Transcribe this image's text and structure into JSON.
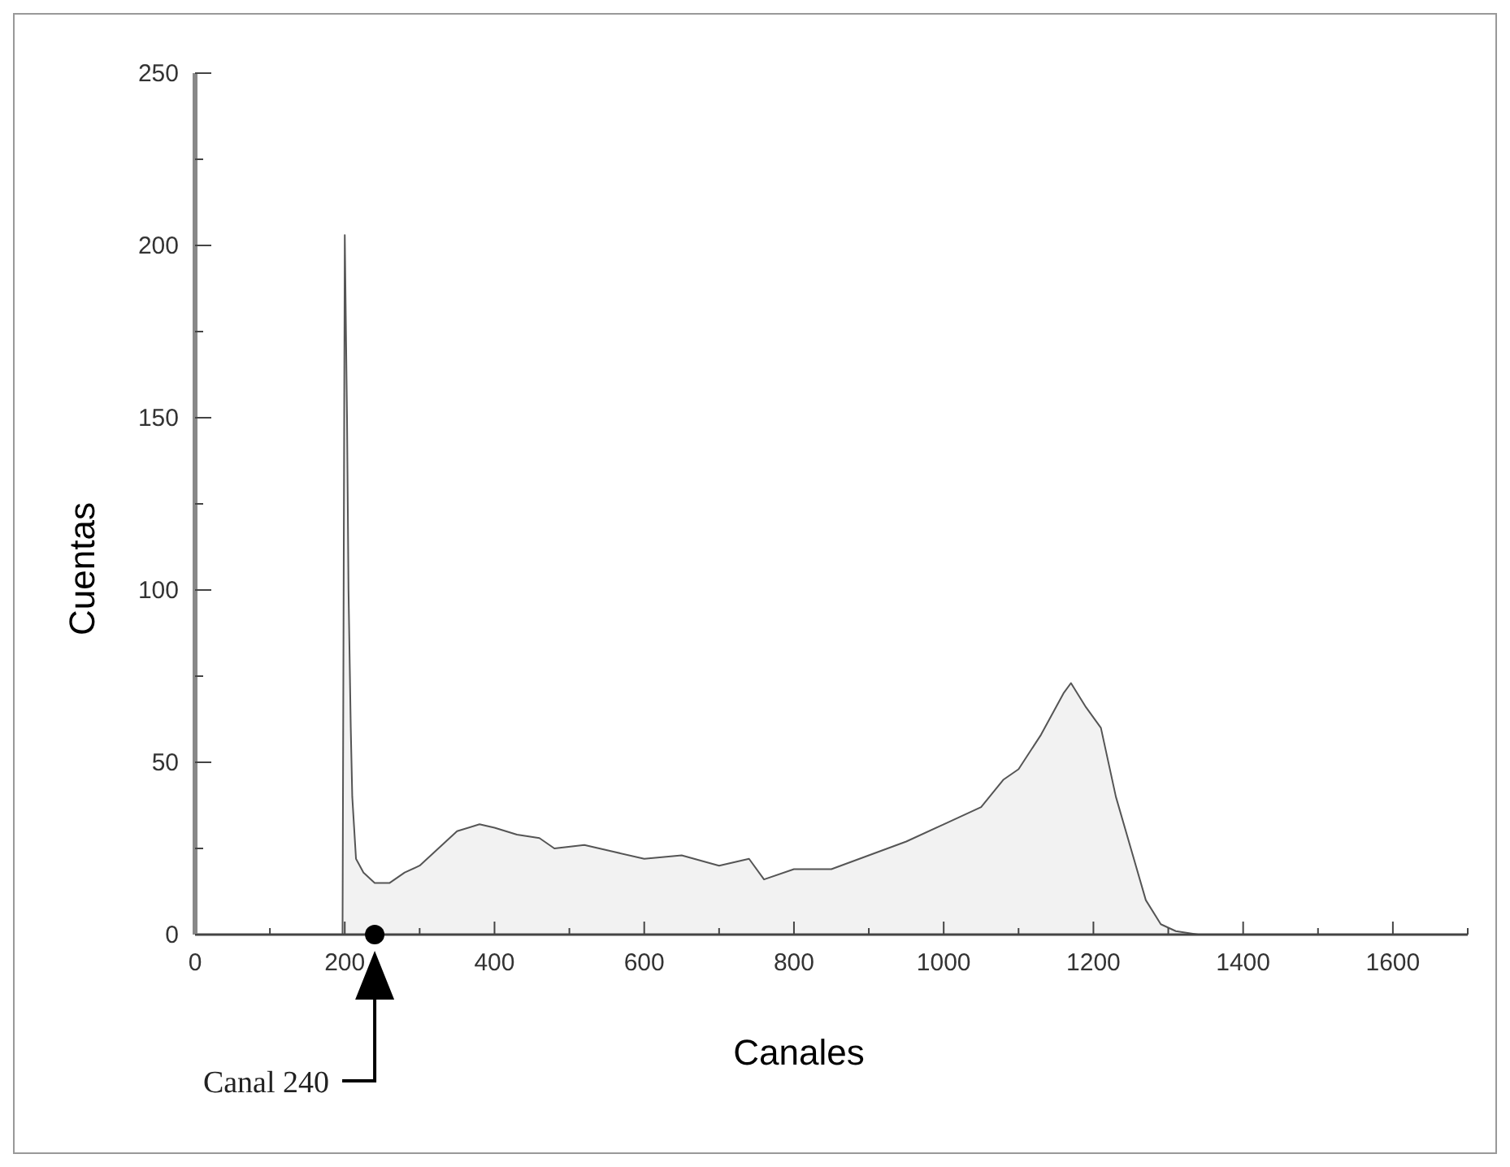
{
  "chart_data": {
    "type": "area",
    "xlabel": "Canales",
    "ylabel": "Cuentas",
    "x": [
      197,
      200,
      203,
      205,
      208,
      210,
      215,
      225,
      240,
      260,
      280,
      300,
      330,
      350,
      380,
      400,
      430,
      460,
      480,
      520,
      560,
      600,
      650,
      700,
      740,
      760,
      800,
      850,
      900,
      950,
      1000,
      1050,
      1080,
      1100,
      1130,
      1160,
      1170,
      1190,
      1210,
      1230,
      1250,
      1270,
      1290,
      1310,
      1340,
      1400
    ],
    "series": [
      {
        "color": "#555555",
        "values": [
          0,
          203,
          150,
          100,
          60,
          40,
          22,
          18,
          15,
          15,
          18,
          20,
          26,
          30,
          32,
          31,
          29,
          28,
          25,
          26,
          24,
          22,
          23,
          20,
          22,
          16,
          19,
          19,
          23,
          27,
          32,
          37,
          45,
          48,
          58,
          70,
          73,
          66,
          60,
          40,
          25,
          10,
          3,
          1,
          0,
          0
        ]
      }
    ],
    "xlim": [
      0,
      1700
    ],
    "ylim": [
      0,
      250
    ],
    "xticks": [
      0,
      {
        "value": 100,
        "label": null
      },
      200,
      {
        "value": 300,
        "label": null
      },
      400,
      {
        "value": 500,
        "label": null
      },
      600,
      {
        "value": 700,
        "label": null
      },
      800,
      {
        "value": 900,
        "label": null
      },
      1000,
      {
        "value": 1100,
        "label": null
      },
      1200,
      {
        "value": 1300,
        "label": null
      },
      1400,
      {
        "value": 1500,
        "label": null
      },
      1600,
      {
        "value": 1700,
        "label": null
      }
    ],
    "yticks": [
      0,
      {
        "value": 25,
        "label": null
      },
      50,
      {
        "value": 75,
        "label": null
      },
      100,
      {
        "value": 125,
        "label": null
      },
      150,
      {
        "value": 175,
        "label": null
      },
      200,
      {
        "value": 225,
        "label": null
      },
      250
    ],
    "annotations": [
      "Canal 240"
    ],
    "grid": false
  }
}
